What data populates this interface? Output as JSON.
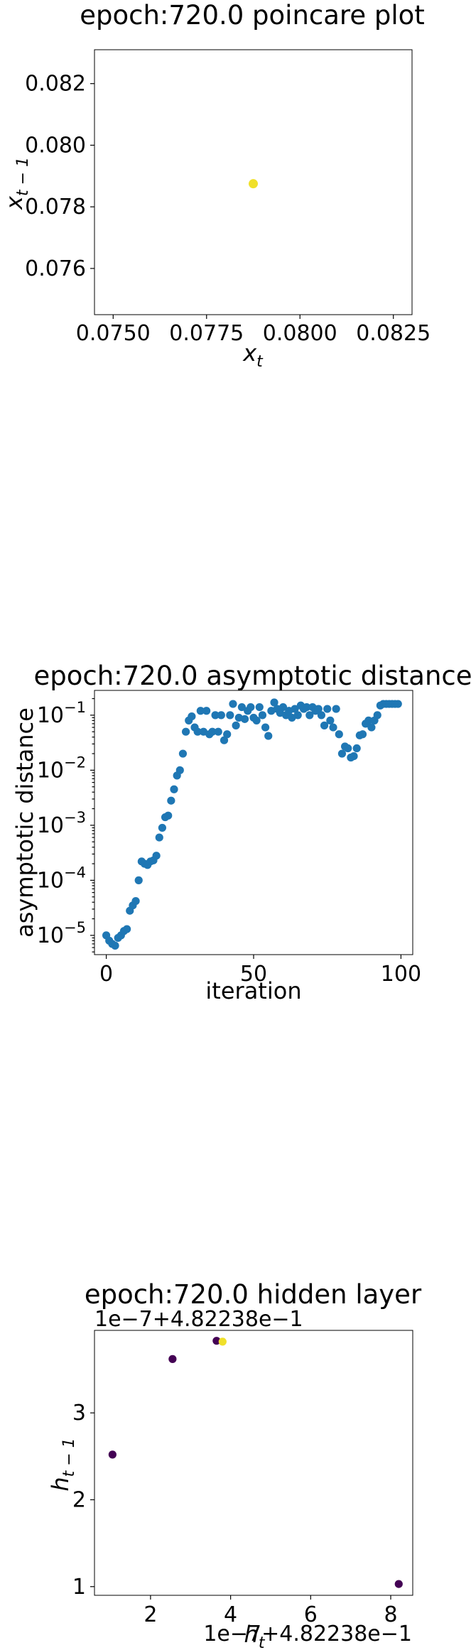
{
  "chart_data": [
    {
      "type": "scatter",
      "title": "epoch:720.0 poincare plot",
      "xlabel": "x_t",
      "ylabel": "x_{t-1}",
      "xlim": [
        0.0745,
        0.083
      ],
      "ylim": [
        0.0745,
        0.0831
      ],
      "xticks": [
        "0.0750",
        "0.0775",
        "0.0800",
        "0.0825"
      ],
      "yticks": [
        "0.076",
        "0.078",
        "0.080",
        "0.082"
      ],
      "points": [
        {
          "x": 0.07875,
          "y": 0.07875,
          "color": "#f0e02a"
        }
      ],
      "grid": false
    },
    {
      "type": "scatter",
      "title": "epoch:720.0 asymptotic distance",
      "xlabel": "iteration",
      "ylabel": "asymptotic distance",
      "yscale": "log",
      "xlim": [
        -4,
        104
      ],
      "xticks": [
        "0",
        "50",
        "100"
      ],
      "yticks": [
        "10^-5",
        "10^-4",
        "10^-3",
        "10^-2",
        "10^-1"
      ],
      "color": "#1f77b4",
      "grid": false,
      "x": [
        0,
        1,
        2,
        3,
        4,
        5,
        6,
        7,
        8,
        9,
        10,
        11,
        12,
        13,
        14,
        15,
        16,
        17,
        18,
        19,
        20,
        21,
        22,
        23,
        24,
        25,
        26,
        27,
        28,
        29,
        30,
        31,
        32,
        33,
        34,
        35,
        36,
        37,
        38,
        39,
        40,
        41,
        42,
        43,
        44,
        45,
        46,
        47,
        48,
        49,
        50,
        51,
        52,
        53,
        54,
        55,
        56,
        57,
        58,
        59,
        60,
        61,
        62,
        63,
        64,
        65,
        66,
        67,
        68,
        69,
        70,
        71,
        72,
        73,
        74,
        75,
        76,
        77,
        78,
        79,
        80,
        81,
        82,
        83,
        84,
        85,
        86,
        87,
        88,
        89,
        90,
        91,
        92,
        93,
        94,
        95,
        96,
        97,
        98,
        99
      ],
      "y": [
        1e-05,
        8e-06,
        7e-06,
        6.5e-06,
        9e-06,
        1e-05,
        1.2e-05,
        1.3e-05,
        2.8e-05,
        3.5e-05,
        4.2e-05,
        0.0001,
        0.00022,
        0.0002,
        0.00019,
        0.00022,
        0.00023,
        0.00028,
        0.0006,
        0.0009,
        0.0014,
        0.0015,
        0.0028,
        0.0045,
        0.008,
        0.01,
        0.02,
        0.05,
        0.08,
        0.095,
        0.06,
        0.05,
        0.12,
        0.05,
        0.12,
        0.045,
        0.05,
        0.1,
        0.05,
        0.1,
        0.035,
        0.045,
        0.1,
        0.16,
        0.065,
        0.09,
        0.14,
        0.085,
        0.12,
        0.14,
        0.09,
        0.08,
        0.14,
        0.1,
        0.06,
        0.042,
        0.12,
        0.17,
        0.13,
        0.11,
        0.14,
        0.1,
        0.12,
        0.09,
        0.13,
        0.1,
        0.15,
        0.13,
        0.14,
        0.1,
        0.14,
        0.12,
        0.13,
        0.1,
        0.065,
        0.13,
        0.08,
        0.06,
        0.13,
        0.045,
        0.02,
        0.027,
        0.025,
        0.017,
        0.018,
        0.025,
        0.043,
        0.045,
        0.07,
        0.08,
        0.06,
        0.08,
        0.1,
        0.15,
        0.16,
        0.16,
        0.16,
        0.16,
        0.16,
        0.16
      ]
    },
    {
      "type": "scatter",
      "title": "epoch:720.0 hidden layer",
      "xlabel": "h_t",
      "ylabel": "h_{t-1}",
      "x_offset_label": "1e−7+4.82238e−1",
      "y_offset_label": "1e−7+4.82238e−1",
      "xlim": [
        0.6,
        8.55
      ],
      "ylim": [
        0.9,
        3.95
      ],
      "xticks": [
        "2",
        "4",
        "6",
        "8"
      ],
      "yticks": [
        "1",
        "2",
        "3"
      ],
      "grid": false,
      "points": [
        {
          "x": 1.05,
          "y": 2.52,
          "color": "#440154"
        },
        {
          "x": 2.55,
          "y": 3.62,
          "color": "#440154"
        },
        {
          "x": 3.65,
          "y": 3.83,
          "color": "#440154"
        },
        {
          "x": 3.8,
          "y": 3.82,
          "color": "#f0e02a"
        },
        {
          "x": 8.2,
          "y": 1.03,
          "color": "#440154"
        }
      ]
    }
  ]
}
